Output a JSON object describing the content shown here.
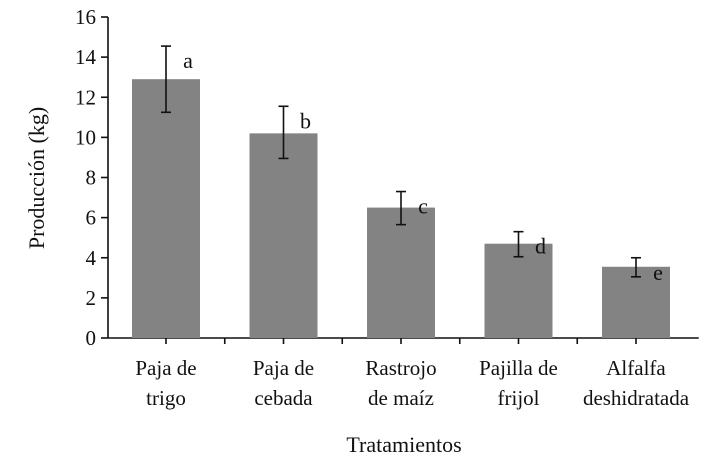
{
  "chart_data": {
    "type": "bar",
    "categories": [
      [
        "Paja de",
        "trigo"
      ],
      [
        "Paja de",
        "cebada"
      ],
      [
        "Rastrojo",
        "de maíz"
      ],
      [
        "Pajilla de",
        "frijol"
      ],
      [
        "Alfalfa",
        "deshidratada"
      ]
    ],
    "values": [
      12.9,
      10.2,
      6.5,
      4.7,
      3.55
    ],
    "error_low": [
      11.25,
      8.95,
      5.65,
      4.05,
      3.05
    ],
    "error_high": [
      14.55,
      11.55,
      7.3,
      5.3,
      4.0
    ],
    "significance_labels": [
      "a",
      "b",
      "c",
      "d",
      "e"
    ],
    "xlabel": "Tratamientos",
    "ylabel": "Producción (kg)",
    "ylim": [
      0,
      16
    ],
    "yticks": [
      "0",
      "2",
      "4",
      "6",
      "8",
      "10",
      "12",
      "14",
      "16"
    ],
    "grid": false,
    "legend": "none",
    "bar_color": "#838383"
  }
}
